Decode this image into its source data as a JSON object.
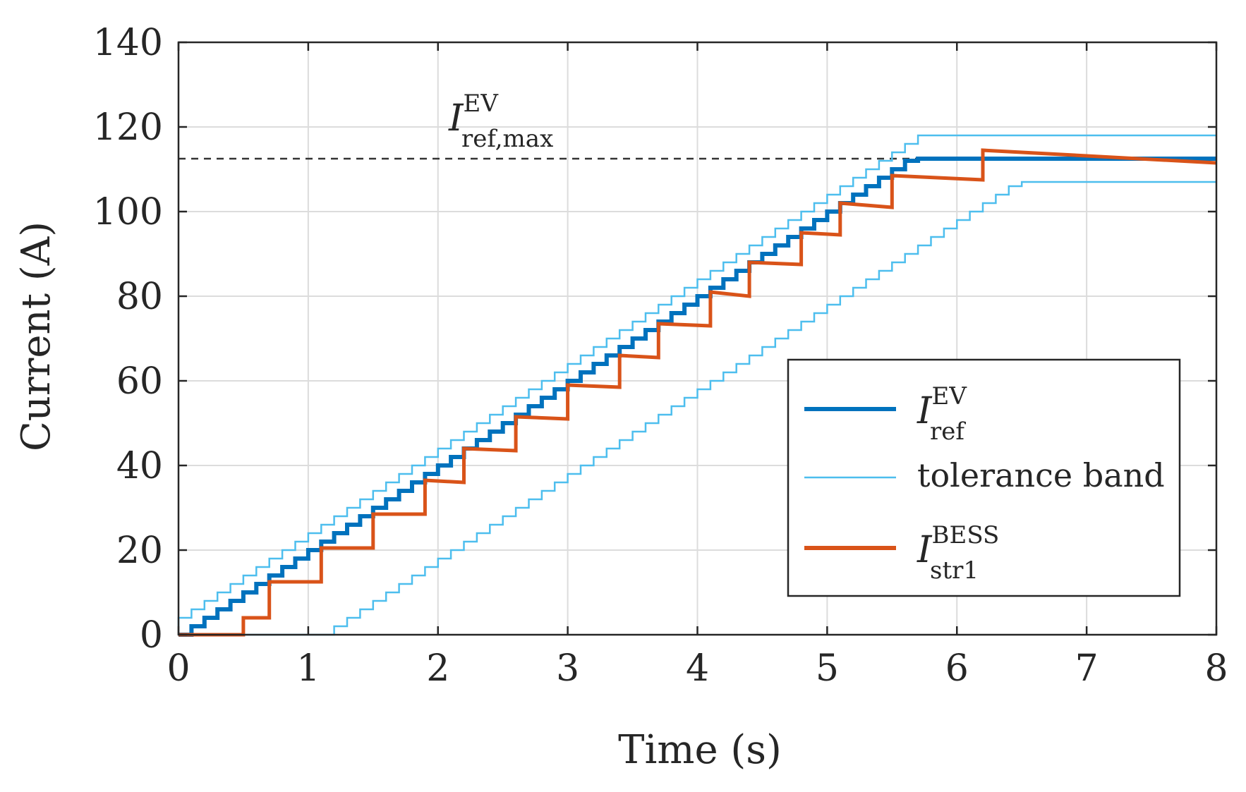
{
  "chart_data": {
    "type": "line",
    "xlabel": "Time (s)",
    "ylabel": "Current (A)",
    "xlim": [
      0,
      8
    ],
    "ylim": [
      0,
      140
    ],
    "xticks": [
      0,
      1,
      2,
      3,
      4,
      5,
      6,
      7,
      8
    ],
    "yticks": [
      0,
      20,
      40,
      60,
      80,
      100,
      120,
      140
    ],
    "xtick_labels": [
      "0",
      "1",
      "2",
      "3",
      "4",
      "5",
      "6",
      "7",
      "8"
    ],
    "ytick_labels": [
      "0",
      "20",
      "40",
      "60",
      "80",
      "100",
      "120",
      "140"
    ],
    "grid": true,
    "legend_position": "bottom-right",
    "colors": {
      "ref": "#0072BD",
      "band": "#4DBEEE",
      "bess": "#D95319",
      "threshold": "#333333",
      "grid": "#dcdcdc",
      "axis": "#262626"
    },
    "threshold": {
      "y": 112.5,
      "label_symbol": "I",
      "label_sup": "EV",
      "label_sub": "ref,max"
    },
    "series": [
      {
        "name": "I_ref^EV",
        "symbol": "I",
        "sup": "EV",
        "sub": "ref",
        "style": "step",
        "step_dt": 0.1,
        "start_t": 0.1,
        "y0": 0,
        "slope": 20,
        "ymax": 112.5,
        "end_t": 8
      },
      {
        "name": "tolerance band (upper)",
        "legend_label": "tolerance band",
        "style": "step",
        "step_dt": 0.1,
        "start_t": 0.0,
        "y0": 2,
        "slope": 20,
        "ymax": 118,
        "end_t": 8
      },
      {
        "name": "tolerance band (lower)",
        "style": "step",
        "step_dt": 0.1,
        "start_t": 1.2,
        "y0": 0,
        "slope": 20,
        "ymax": 107,
        "end_t": 8
      },
      {
        "name": "I_str1^BESS",
        "symbol": "I",
        "sup": "BESS",
        "sub": "str1",
        "style": "polyline",
        "points": [
          [
            0,
            0
          ],
          [
            0.5,
            0
          ],
          [
            0.5,
            4
          ],
          [
            0.7,
            4
          ],
          [
            0.7,
            12.5
          ],
          [
            1.1,
            12.5
          ],
          [
            1.1,
            20.5
          ],
          [
            1.5,
            20.5
          ],
          [
            1.5,
            28.5
          ],
          [
            1.9,
            28.5
          ],
          [
            1.9,
            36.5
          ],
          [
            2.2,
            36
          ],
          [
            2.2,
            44
          ],
          [
            2.6,
            43.5
          ],
          [
            2.6,
            51.5
          ],
          [
            3.0,
            51
          ],
          [
            3.0,
            59
          ],
          [
            3.4,
            58.5
          ],
          [
            3.4,
            66
          ],
          [
            3.7,
            65.5
          ],
          [
            3.7,
            73.5
          ],
          [
            4.1,
            73
          ],
          [
            4.1,
            81
          ],
          [
            4.4,
            80
          ],
          [
            4.4,
            88
          ],
          [
            4.8,
            87.5
          ],
          [
            4.8,
            95
          ],
          [
            5.1,
            94.5
          ],
          [
            5.1,
            102
          ],
          [
            5.5,
            101
          ],
          [
            5.5,
            108.5
          ],
          [
            6.2,
            107.5
          ],
          [
            6.2,
            114.5
          ],
          [
            8.0,
            111.5
          ]
        ]
      }
    ]
  }
}
